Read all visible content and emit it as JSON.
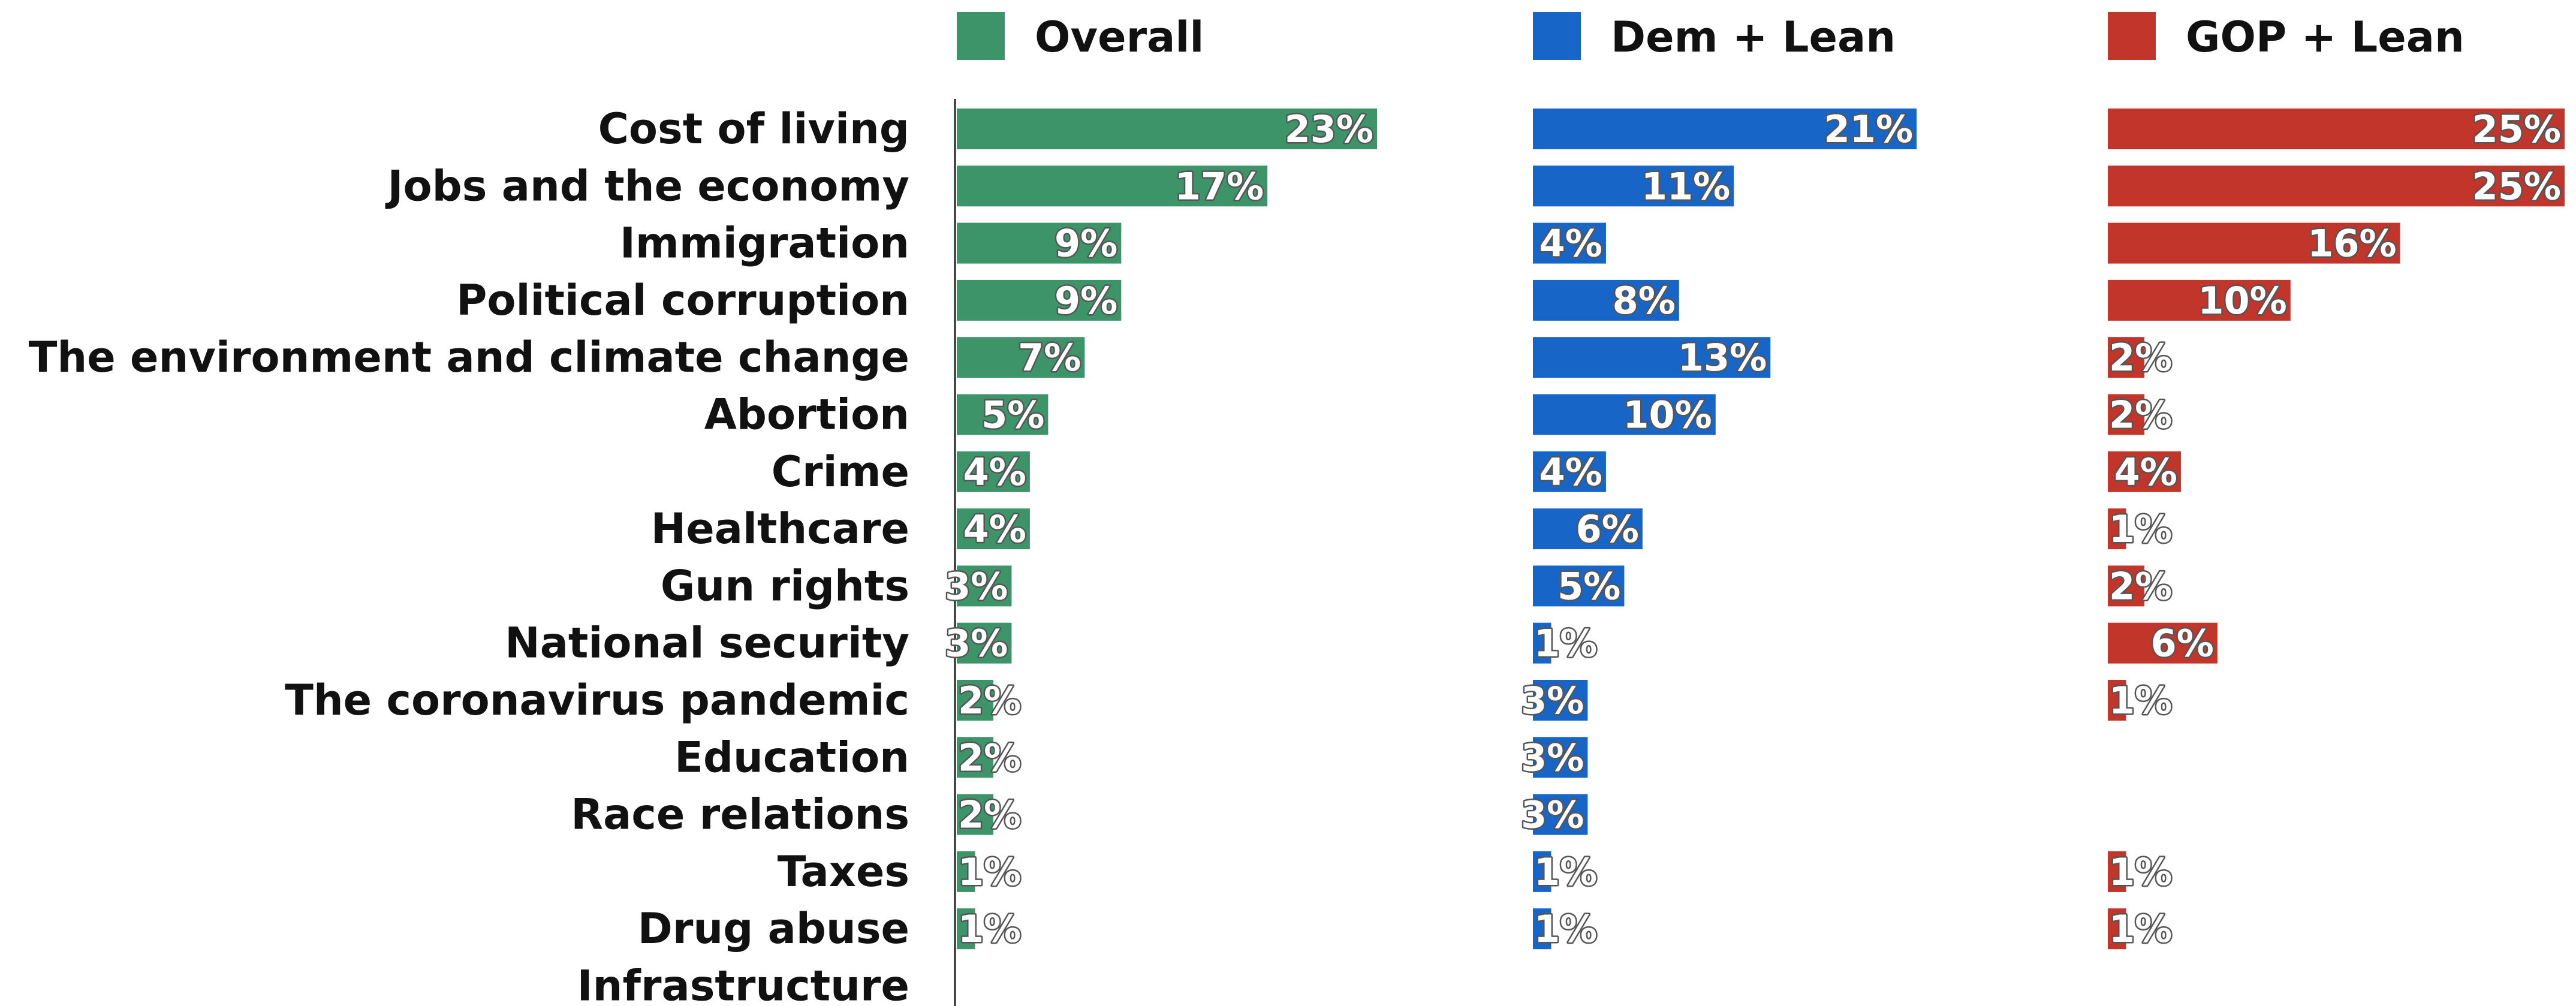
{
  "chart_data": {
    "type": "bar",
    "orientation": "horizontal",
    "layout": "small-multiples",
    "legend_position": "top",
    "grid": false,
    "categories": [
      "Cost of living",
      "Jobs and the economy",
      "Immigration",
      "Political corruption",
      "The environment and climate change",
      "Abortion",
      "Crime",
      "Healthcare",
      "Gun rights",
      "National security",
      "The coronavirus pandemic",
      "Education",
      "Race relations",
      "Taxes",
      "Drug abuse",
      "Infrastructure"
    ],
    "xlim": [
      0,
      25
    ],
    "series": [
      {
        "name": "Overall",
        "color": "#3e9469",
        "values": [
          23,
          17,
          9,
          9,
          7,
          5,
          4,
          4,
          3,
          3,
          2,
          2,
          2,
          1,
          1,
          null
        ],
        "labels": [
          "23%",
          "17%",
          "9%",
          "9%",
          "7%",
          "5%",
          "4%",
          "4%",
          "3%",
          "3%",
          "2%",
          "2%",
          "2%",
          "1%",
          "1%",
          ""
        ]
      },
      {
        "name": "Dem + Lean",
        "color": "#1766c7",
        "values": [
          21,
          11,
          4,
          8,
          13,
          10,
          4,
          6,
          5,
          1,
          3,
          3,
          3,
          1,
          1,
          null
        ],
        "labels": [
          "21%",
          "11%",
          "4%",
          "8%",
          "13%",
          "10%",
          "4%",
          "6%",
          "5%",
          "1%",
          "3%",
          "3%",
          "3%",
          "1%",
          "1%",
          ""
        ]
      },
      {
        "name": "GOP + Lean",
        "color": "#c1352b",
        "values": [
          25,
          25,
          16,
          10,
          2,
          2,
          4,
          1,
          2,
          6,
          1,
          null,
          null,
          1,
          1,
          null
        ],
        "labels": [
          "25%",
          "25%",
          "16%",
          "10%",
          "2%",
          "2%",
          "4%",
          "1%",
          "2%",
          "6%",
          "1%",
          "",
          "",
          "1%",
          "1%",
          ""
        ]
      }
    ]
  }
}
